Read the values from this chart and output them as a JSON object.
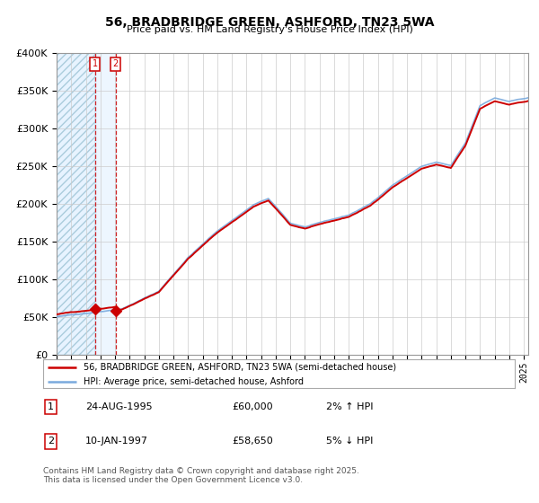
{
  "title": "56, BRADBRIDGE GREEN, ASHFORD, TN23 5WA",
  "subtitle": "Price paid vs. HM Land Registry's House Price Index (HPI)",
  "legend_line1": "56, BRADBRIDGE GREEN, ASHFORD, TN23 5WA (semi-detached house)",
  "legend_line2": "HPI: Average price, semi-detached house, Ashford",
  "transaction1_label": "1",
  "transaction1_date": "24-AUG-1995",
  "transaction1_price": "£60,000",
  "transaction1_hpi": "2% ↑ HPI",
  "transaction2_label": "2",
  "transaction2_date": "10-JAN-1997",
  "transaction2_price": "£58,650",
  "transaction2_hpi": "5% ↓ HPI",
  "footer": "Contains HM Land Registry data © Crown copyright and database right 2025.\nThis data is licensed under the Open Government Licence v3.0.",
  "red_line_color": "#cc0000",
  "blue_line_color": "#7aaadd",
  "background_color": "#ffffff",
  "grid_color": "#cccccc",
  "ylim": [
    0,
    400000
  ],
  "yticks": [
    0,
    50000,
    100000,
    150000,
    200000,
    250000,
    300000,
    350000,
    400000
  ],
  "x_start_year": 1993,
  "x_end_year": 2025,
  "transaction1_x": 1995.64,
  "transaction2_x": 1997.03,
  "transaction1_price_val": 60000,
  "transaction2_price_val": 58650,
  "marker_color": "#cc0000"
}
